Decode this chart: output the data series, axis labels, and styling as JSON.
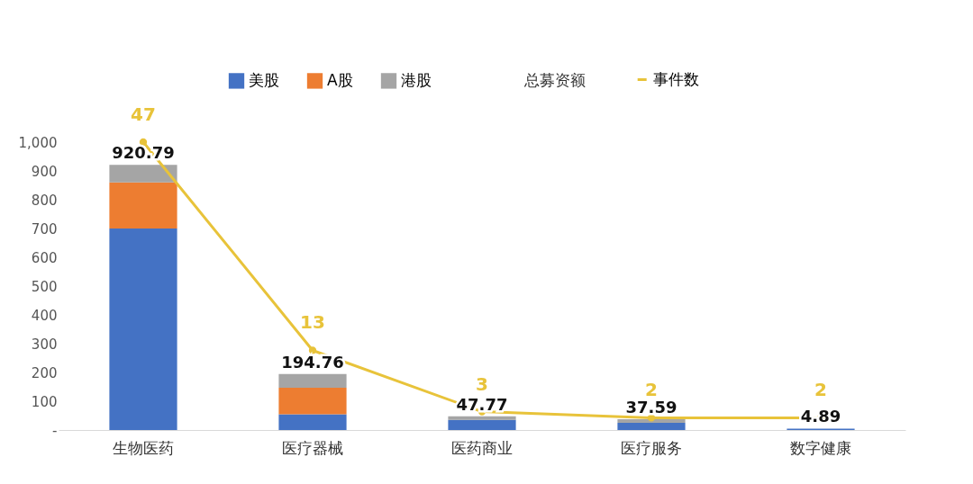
{
  "chart_data": {
    "type": "bar",
    "stacked": true,
    "categories": [
      "生物医药",
      "医疗器械",
      "医药商业",
      "医疗服务",
      "数字健康"
    ],
    "series": [
      {
        "name": "美股",
        "color": "#4472c4",
        "values": [
          700,
          55,
          35,
          25,
          4.89
        ]
      },
      {
        "name": "A股",
        "color": "#ed7d31",
        "values": [
          160,
          92,
          0,
          0,
          0
        ]
      },
      {
        "name": "港股",
        "color": "#a5a5a5",
        "values": [
          60.79,
          47.76,
          12.77,
          12.59,
          0
        ]
      },
      {
        "name": "事件数",
        "type": "line",
        "axis": "y2",
        "color": "#e8c33a",
        "marker": "circle",
        "values": [
          47,
          13,
          3,
          2,
          2
        ],
        "value_labels": [
          "47",
          "13",
          "3",
          "2",
          "2"
        ]
      }
    ],
    "totals": [
      "920.79",
      "194.76",
      "47.77",
      "37.59",
      "4.89"
    ],
    "annotations": [
      "总募资额"
    ],
    "ylim": [
      0,
      1000
    ],
    "yticks": [
      {
        "value": 0,
        "label": "-"
      },
      100,
      200,
      300,
      400,
      500,
      600,
      700,
      800,
      900,
      {
        "value": 1000,
        "label": "1,000"
      }
    ],
    "grid": false,
    "legend": "top"
  }
}
